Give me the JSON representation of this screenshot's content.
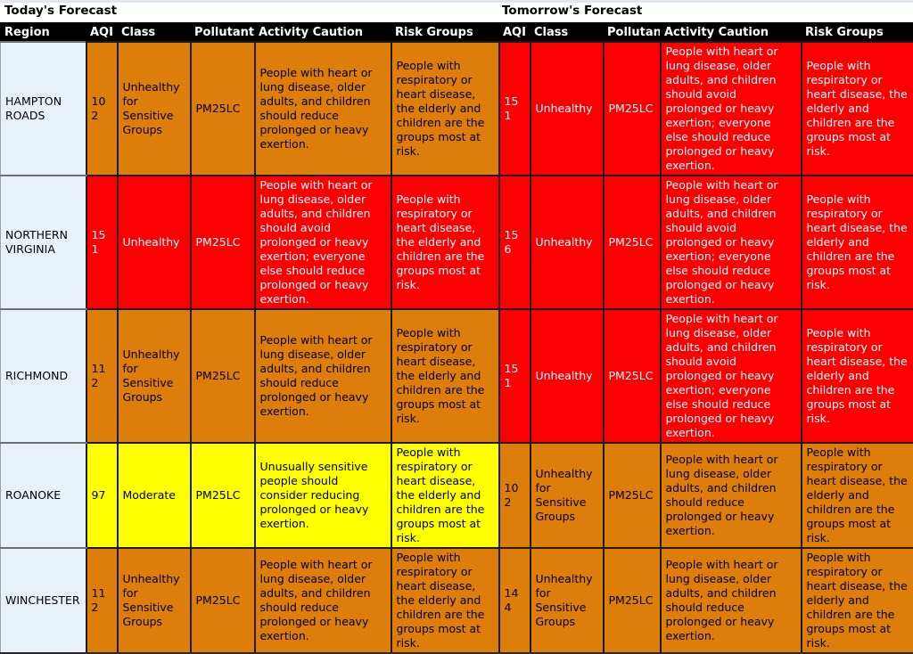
{
  "titles": {
    "today": "Today's Forecast",
    "tomorrow": "Tomorrow's Forecast"
  },
  "columns": {
    "region": "Region",
    "aqi": "AQI",
    "class": "Class",
    "pollutant": "Pollutant",
    "activity": "Activity Caution",
    "risk": "Risk Groups"
  },
  "colors": {
    "aqi_yellow": "#FFFF00",
    "aqi_orange": "#DD7E0B",
    "aqi_red": "#FB0000",
    "header_bg": "#000000",
    "header_text": "#FFFFFF",
    "region_bg": "#E8F0F8",
    "page_bg": "#E8F0F8",
    "title_bg": "#FFFFFF",
    "cell_text": "#000000",
    "red_cell_text": "#FFFFFF"
  },
  "rows": [
    {
      "region": "HAMPTON ROADS",
      "today": {
        "aqi": "102",
        "class": "Unhealthy for Sensitive Groups",
        "pollutant": "PM25LC",
        "activity": "People with heart or lung disease, older adults, and children should reduce prolonged or heavy exertion.",
        "risk": "People with respiratory or heart disease, the elderly and children are the groups most at risk.",
        "level": "orange"
      },
      "tomorrow": {
        "aqi": "151",
        "class": "Unhealthy",
        "pollutant": "PM25LC",
        "activity": "People with heart or lung disease, older adults, and children should avoid prolonged or heavy exertion; everyone else should reduce prolonged or heavy exertion.",
        "risk": "People with respiratory or heart disease, the elderly and children are the groups most at risk.",
        "level": "red"
      }
    },
    {
      "region": "NORTHERN VIRGINIA",
      "today": {
        "aqi": "151",
        "class": "Unhealthy",
        "pollutant": "PM25LC",
        "activity": "People with heart or lung disease, older adults, and children should avoid prolonged or heavy exertion; everyone else should reduce prolonged or heavy exertion.",
        "risk": "People with respiratory or heart disease, the elderly and children are the groups most at risk.",
        "level": "red"
      },
      "tomorrow": {
        "aqi": "156",
        "class": "Unhealthy",
        "pollutant": "PM25LC",
        "activity": "People with heart or lung disease, older adults, and children should avoid prolonged or heavy exertion; everyone else should reduce prolonged or heavy exertion.",
        "risk": "People with respiratory or heart disease, the elderly and children are the groups most at risk.",
        "level": "red"
      }
    },
    {
      "region": "RICHMOND",
      "today": {
        "aqi": "112",
        "class": "Unhealthy for Sensitive Groups",
        "pollutant": "PM25LC",
        "activity": "People with heart or lung disease, older adults, and children should reduce prolonged or heavy exertion.",
        "risk": "People with respiratory or heart disease, the elderly and children are the groups most at risk.",
        "level": "orange"
      },
      "tomorrow": {
        "aqi": "151",
        "class": "Unhealthy",
        "pollutant": "PM25LC",
        "activity": "People with heart or lung disease, older adults, and children should avoid prolonged or heavy exertion; everyone else should reduce prolonged or heavy exertion.",
        "risk": "People with respiratory or heart disease, the elderly and children are the groups most at risk.",
        "level": "red"
      }
    },
    {
      "region": "ROANOKE",
      "today": {
        "aqi": "97",
        "class": "Moderate",
        "pollutant": "PM25LC",
        "activity": "Unusually sensitive people should consider reducing prolonged or heavy exertion.",
        "risk": "People with respiratory or heart disease, the elderly and children are the groups most at risk.",
        "level": "yellow"
      },
      "tomorrow": {
        "aqi": "102",
        "class": "Unhealthy for Sensitive Groups",
        "pollutant": "PM25LC",
        "activity": "People with heart or lung disease, older adults, and children should reduce prolonged or heavy exertion.",
        "risk": "People with respiratory or heart disease, the elderly and children are the groups most at risk.",
        "level": "orange"
      }
    },
    {
      "region": "WINCHESTER",
      "today": {
        "aqi": "112",
        "class": "Unhealthy for Sensitive Groups",
        "pollutant": "PM25LC",
        "activity": "People with heart or lung disease, older adults, and children should reduce prolonged or heavy exertion.",
        "risk": "People with respiratory or heart disease, the elderly and children are the groups most at risk.",
        "level": "orange"
      },
      "tomorrow": {
        "aqi": "144",
        "class": "Unhealthy for Sensitive Groups",
        "pollutant": "PM25LC",
        "activity": "People with heart or lung disease, older adults, and children should reduce prolonged or heavy exertion.",
        "risk": "People with respiratory or heart disease, the elderly and children are the groups most at risk.",
        "level": "orange"
      }
    }
  ]
}
